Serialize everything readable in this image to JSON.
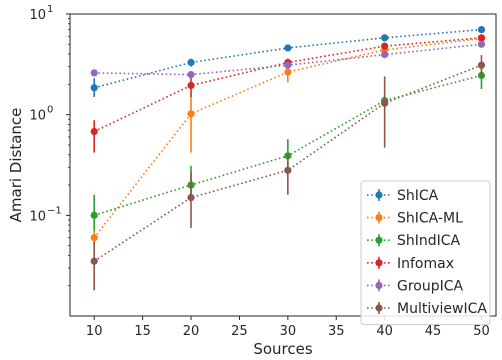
{
  "chart_data": {
    "type": "line",
    "title": "",
    "xlabel": "Sources",
    "ylabel": "Amari Distance",
    "y_scale": "log",
    "xlim": [
      7.5,
      51.5
    ],
    "ylim": [
      0.01,
      10
    ],
    "x_ticks": [
      10,
      15,
      20,
      25,
      30,
      35,
      40,
      45,
      50
    ],
    "y_ticks": [
      {
        "value": 0.1,
        "base": "10",
        "exp": "−1"
      },
      {
        "value": 1,
        "base": "10",
        "exp": "0"
      },
      {
        "value": 10,
        "base": "10",
        "exp": "1"
      }
    ],
    "grid": false,
    "legend_position": "bottom-right",
    "x": [
      10,
      20,
      30,
      40,
      50
    ],
    "series": [
      {
        "name": "ShICA",
        "color": "#1f77b4",
        "values": [
          1.85,
          3.3,
          4.6,
          5.8,
          7.0
        ],
        "lower": [
          1.5,
          3.0,
          4.3,
          5.4,
          6.6
        ],
        "upper": [
          2.3,
          3.6,
          4.9,
          6.2,
          7.4
        ]
      },
      {
        "name": "ShICA-ML",
        "color": "#ff7f0e",
        "values": [
          0.06,
          1.02,
          2.65,
          4.4,
          5.7
        ],
        "lower": [
          0.05,
          0.42,
          2.1,
          3.7,
          5.2
        ],
        "upper": [
          0.07,
          1.55,
          3.1,
          5.0,
          6.2
        ]
      },
      {
        "name": "ShIndICA",
        "color": "#2ca02c",
        "values": [
          0.1,
          0.2,
          0.39,
          1.38,
          2.45
        ],
        "lower": [
          0.07,
          0.14,
          0.3,
          1.2,
          1.8
        ],
        "upper": [
          0.16,
          0.31,
          0.57,
          1.55,
          3.2
        ]
      },
      {
        "name": "Infomax",
        "color": "#d62728",
        "values": [
          0.68,
          1.95,
          3.3,
          4.8,
          5.8
        ],
        "lower": [
          0.42,
          1.5,
          3.0,
          4.4,
          5.4
        ],
        "upper": [
          0.88,
          2.4,
          3.6,
          5.2,
          6.2
        ]
      },
      {
        "name": "GroupICA",
        "color": "#9467bd",
        "values": [
          2.6,
          2.5,
          3.1,
          3.95,
          5.0
        ],
        "lower": [
          2.45,
          2.35,
          2.9,
          3.7,
          4.7
        ],
        "upper": [
          2.75,
          2.65,
          3.3,
          4.2,
          5.3
        ]
      },
      {
        "name": "MultiviewICA",
        "color": "#8c564b",
        "values": [
          0.035,
          0.15,
          0.28,
          1.3,
          3.1
        ],
        "lower": [
          0.018,
          0.075,
          0.16,
          0.47,
          2.3
        ],
        "upper": [
          0.055,
          0.27,
          0.4,
          2.4,
          3.9
        ]
      }
    ]
  }
}
